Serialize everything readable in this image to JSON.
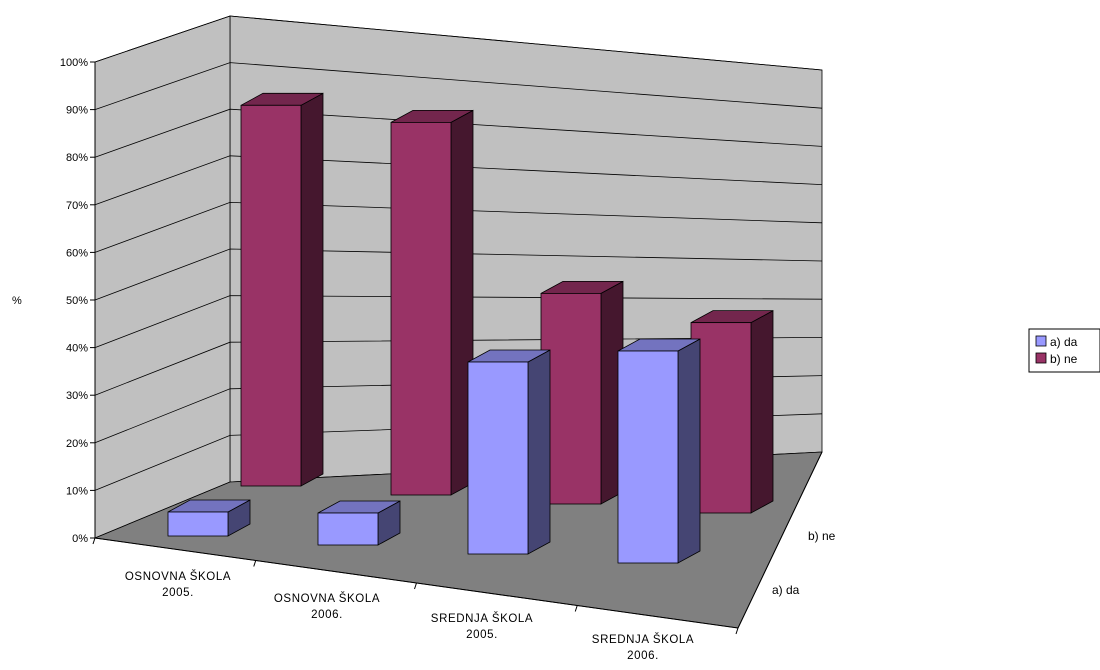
{
  "chart_data": {
    "type": "bar",
    "style": "3d-column",
    "ylabel": "%",
    "ylim": [
      0,
      100
    ],
    "y_ticks": [
      "0%",
      "10%",
      "20%",
      "30%",
      "40%",
      "50%",
      "60%",
      "70%",
      "80%",
      "90%",
      "100%"
    ],
    "categories": [
      [
        "OSNOVNA ŠKOLA",
        "2005."
      ],
      [
        "OSNOVNA ŠKOLA",
        "2006."
      ],
      [
        "SREDNJA ŠKOLA",
        "2005."
      ],
      [
        "SREDNJA ŠKOLA",
        "2006."
      ]
    ],
    "series": [
      {
        "name": "a) da",
        "values": [
          6,
          8,
          48,
          53
        ],
        "color": "#9999ff"
      },
      {
        "name": "b) ne",
        "values": [
          94,
          92,
          52,
          47
        ],
        "color": "#993366"
      }
    ],
    "grid": true,
    "legend_position": "right",
    "colors": {
      "back_wall": "#c0c0c0",
      "floor": "#808080",
      "grid": "#000000"
    }
  }
}
